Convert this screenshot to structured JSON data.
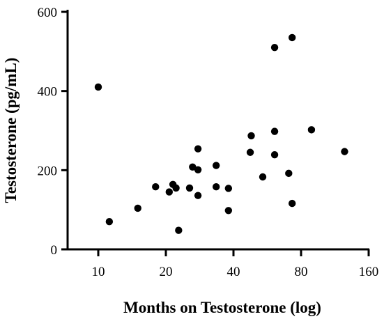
{
  "chart_data": {
    "type": "scatter",
    "xlabel": "Months on Testosterone (log)",
    "ylabel": "Testosterone (pg/mL)",
    "xscale": "log",
    "xlim": [
      10,
      160
    ],
    "ylim": [
      0,
      600
    ],
    "xticks": [
      10,
      20,
      40,
      80,
      160
    ],
    "xtick_labels": [
      "10",
      "20",
      "40",
      "80",
      "160"
    ],
    "yticks": [
      0,
      200,
      400,
      600
    ],
    "ytick_labels": [
      "0",
      "200",
      "400",
      "600"
    ],
    "grid": false,
    "marker_color": "#000000",
    "points": [
      {
        "x": 10.0,
        "y": 410
      },
      {
        "x": 11.2,
        "y": 70
      },
      {
        "x": 15.0,
        "y": 104
      },
      {
        "x": 18.0,
        "y": 158
      },
      {
        "x": 20.7,
        "y": 145
      },
      {
        "x": 21.5,
        "y": 164
      },
      {
        "x": 22.2,
        "y": 155
      },
      {
        "x": 22.8,
        "y": 48
      },
      {
        "x": 25.5,
        "y": 155
      },
      {
        "x": 26.3,
        "y": 208
      },
      {
        "x": 27.8,
        "y": 254
      },
      {
        "x": 27.8,
        "y": 201
      },
      {
        "x": 27.8,
        "y": 136
      },
      {
        "x": 33.5,
        "y": 212
      },
      {
        "x": 33.5,
        "y": 158
      },
      {
        "x": 38.0,
        "y": 154
      },
      {
        "x": 38.0,
        "y": 98
      },
      {
        "x": 47.5,
        "y": 245
      },
      {
        "x": 48.0,
        "y": 287
      },
      {
        "x": 54.0,
        "y": 183
      },
      {
        "x": 61.0,
        "y": 510
      },
      {
        "x": 61.0,
        "y": 298
      },
      {
        "x": 61.0,
        "y": 239
      },
      {
        "x": 70.5,
        "y": 192
      },
      {
        "x": 73.0,
        "y": 535
      },
      {
        "x": 73.0,
        "y": 116
      },
      {
        "x": 89.0,
        "y": 302
      },
      {
        "x": 125.0,
        "y": 247
      }
    ]
  }
}
